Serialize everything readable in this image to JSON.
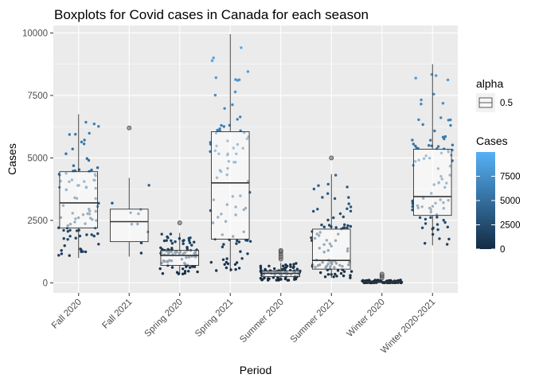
{
  "chart_data": {
    "type": "boxplot",
    "title": "Boxplots for Covid cases in Canada for each season",
    "xlabel": "Period",
    "ylabel": "Cases",
    "ylim": [
      -400,
      10300
    ],
    "yticks": [
      0,
      2500,
      5000,
      7500,
      10000
    ],
    "categories": [
      "Fall 2020",
      "Fall 2021",
      "Spring 2020",
      "Spring 2021",
      "Summer 2020",
      "Summer 2021",
      "Winter 2020",
      "Winter 2020-2021"
    ],
    "boxes": [
      {
        "category": "Fall 2020",
        "whisker_low": 1000,
        "q1": 2200,
        "median": 3200,
        "q3": 4450,
        "whisker_high": 6750,
        "outliers": []
      },
      {
        "category": "Fall 2021",
        "whisker_low": 1050,
        "q1": 1650,
        "median": 2450,
        "q3": 2950,
        "whisker_high": 4200,
        "outliers": [
          6200
        ]
      },
      {
        "category": "Spring 2020",
        "whisker_low": 350,
        "q1": 700,
        "median": 1100,
        "q3": 1300,
        "whisker_high": 2000,
        "outliers": [
          2400
        ]
      },
      {
        "category": "Spring 2021",
        "whisker_low": 450,
        "q1": 1750,
        "median": 4000,
        "q3": 6050,
        "whisker_high": 9950,
        "outliers": []
      },
      {
        "category": "Summer 2020",
        "whisker_low": 100,
        "q1": 250,
        "median": 380,
        "q3": 480,
        "whisker_high": 800,
        "outliers": [
          950,
          1050,
          1150,
          1250,
          1300
        ]
      },
      {
        "category": "Summer 2021",
        "whisker_low": 200,
        "q1": 550,
        "median": 900,
        "q3": 2150,
        "whisker_high": 4350,
        "outliers": [
          5000
        ]
      },
      {
        "category": "Winter 2020",
        "whisker_low": 0,
        "q1": 10,
        "median": 30,
        "q3": 60,
        "whisker_high": 120,
        "outliers": [
          200,
          280,
          350
        ]
      },
      {
        "category": "Winter 2020-2021",
        "whisker_low": 1500,
        "q1": 2700,
        "median": 3450,
        "q3": 5350,
        "whisker_high": 8750,
        "outliers": []
      }
    ],
    "legend": {
      "alpha": {
        "title": "alpha",
        "label": "0.5"
      },
      "color": {
        "title": "Cases",
        "ticks": [
          0,
          2500,
          5000,
          7500
        ],
        "range": [
          0,
          10000
        ],
        "low_color": "#132B43",
        "high_color": "#56B1F7"
      }
    },
    "grid": true,
    "panel_background": "#EBEBEB"
  }
}
